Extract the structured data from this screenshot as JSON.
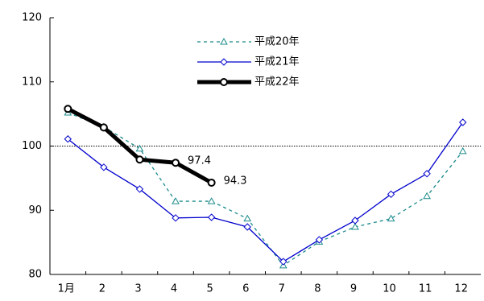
{
  "chart_data": {
    "type": "line",
    "categories": [
      "1月",
      "2",
      "3",
      "4",
      "5",
      "6",
      "7",
      "8",
      "9",
      "10",
      "11",
      "12"
    ],
    "series": [
      {
        "name": "平成20年",
        "color": "#1b8a8a",
        "dash": true,
        "marker": "triangle",
        "values": [
          105.2,
          103.0,
          99.6,
          91.4,
          91.4,
          88.7,
          81.4,
          85.1,
          87.4,
          88.7,
          92.2,
          99.2
        ]
      },
      {
        "name": "平成21年",
        "color": "#0000cc",
        "dash": false,
        "marker": "diamond",
        "values": [
          101.1,
          96.7,
          93.3,
          88.8,
          88.9,
          87.4,
          82.0,
          85.4,
          88.4,
          92.5,
          95.7,
          103.7
        ]
      },
      {
        "name": "平成22年",
        "color": "#000000",
        "dash": false,
        "marker": "circle",
        "width": 5,
        "values": [
          105.8,
          102.9,
          97.9,
          97.4,
          94.3,
          null,
          null,
          null,
          null,
          null,
          null,
          null
        ],
        "value_labels": [
          null,
          null,
          null,
          "97.4",
          "94.3",
          null,
          null,
          null,
          null,
          null,
          null,
          null
        ]
      }
    ],
    "ylim": [
      80,
      120
    ],
    "yticks": [
      80,
      90,
      100,
      110,
      120
    ],
    "reference_line": 100
  }
}
